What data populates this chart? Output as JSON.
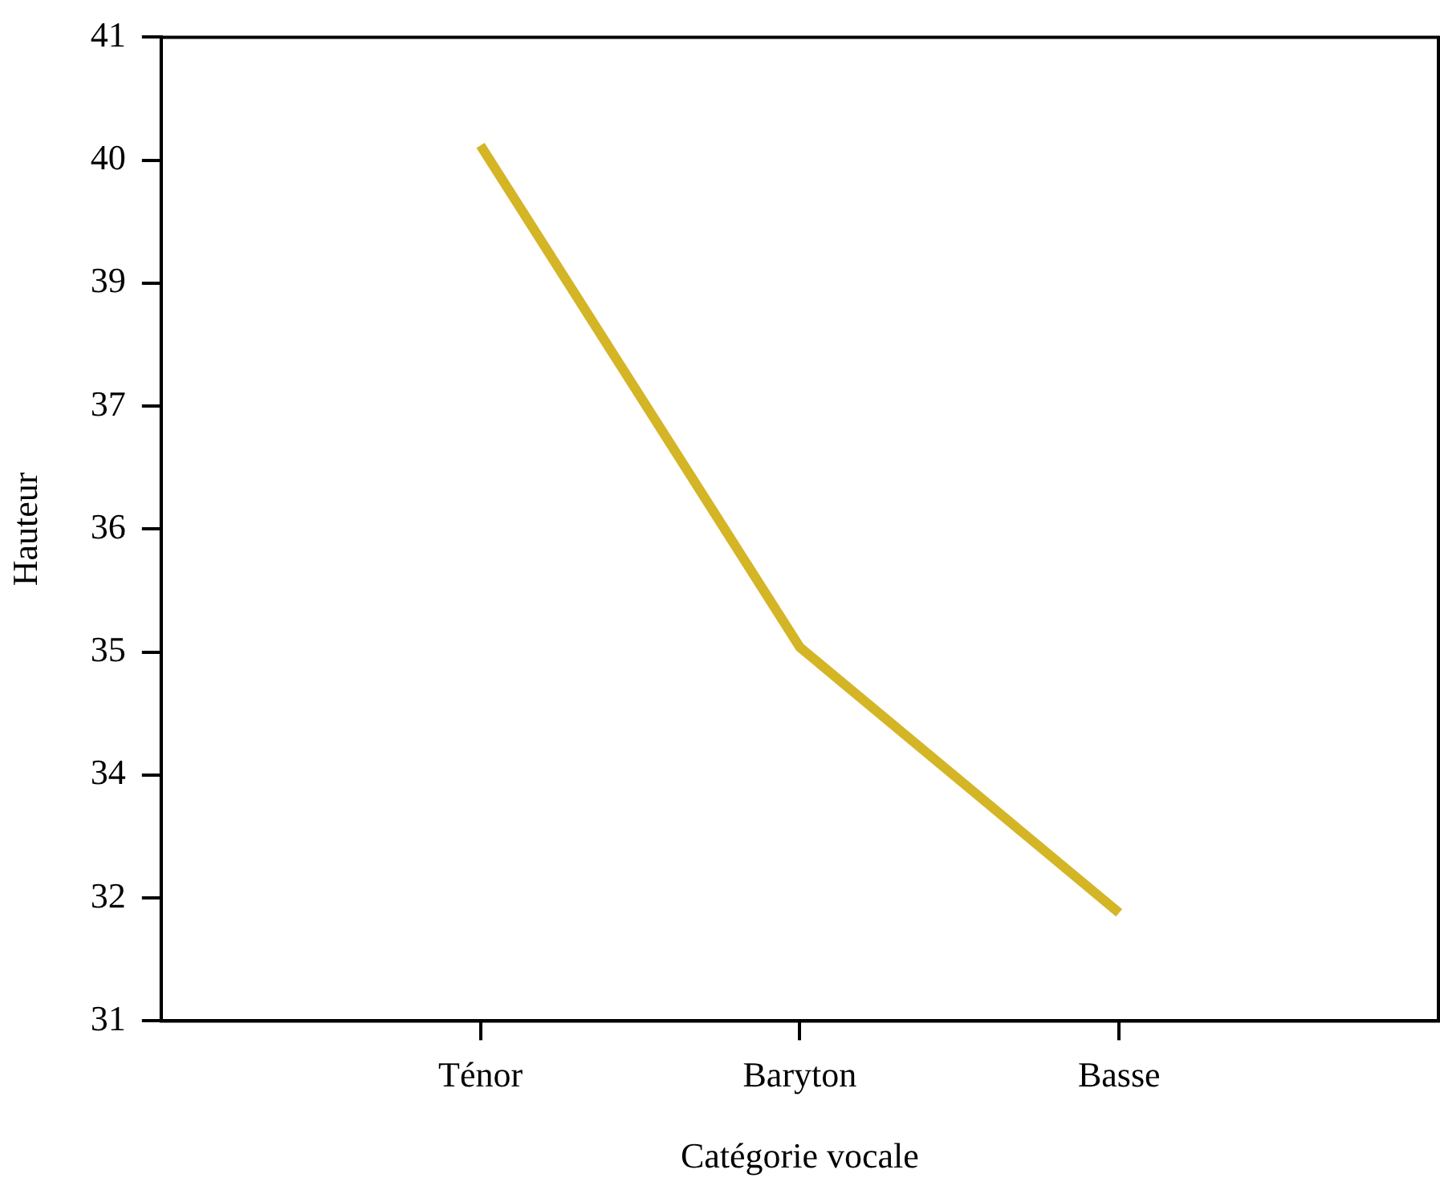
{
  "chart_data": {
    "type": "line",
    "xlabel": "Catégorie vocale",
    "ylabel": "Hauteur",
    "categories": [
      "Ténor",
      "Baryton",
      "Basse"
    ],
    "series": [
      {
        "color": "#d4b526",
        "values": [
          39.9,
          34.8,
          32.1
        ]
      }
    ],
    "ylim": [
      31,
      41
    ],
    "yticks": [
      31,
      {
        "value": 32.25,
        "label": "32"
      },
      {
        "value": 33.5,
        "label": "34"
      },
      {
        "value": 34.75,
        "label": "35"
      },
      36,
      {
        "value": 37.25,
        "label": "37"
      },
      {
        "value": 38.5,
        "label": "39"
      },
      {
        "value": 39.75,
        "label": "40"
      },
      41
    ],
    "grid": false,
    "legend": false,
    "marker": "none",
    "line_style": "solid"
  }
}
